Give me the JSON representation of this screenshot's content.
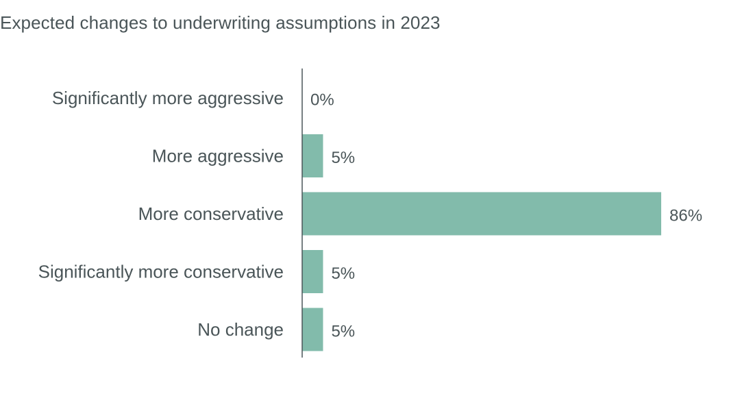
{
  "chart_data": {
    "type": "bar",
    "orientation": "horizontal",
    "title": "Expected changes to underwriting assumptions in 2023",
    "categories": [
      "Significantly more aggressive",
      "More aggressive",
      "More conservative",
      "Significantly more conservative",
      "No change"
    ],
    "values": [
      0,
      5,
      86,
      5,
      5
    ],
    "value_labels": [
      "0%",
      "5%",
      "86%",
      "5%",
      "5%"
    ],
    "unit": "%",
    "xlim": [
      0,
      86
    ],
    "grid": false,
    "legend": "none",
    "colors": {
      "bar": "#82bbab",
      "axis": "#4a5558",
      "text": "#4a5558"
    }
  }
}
